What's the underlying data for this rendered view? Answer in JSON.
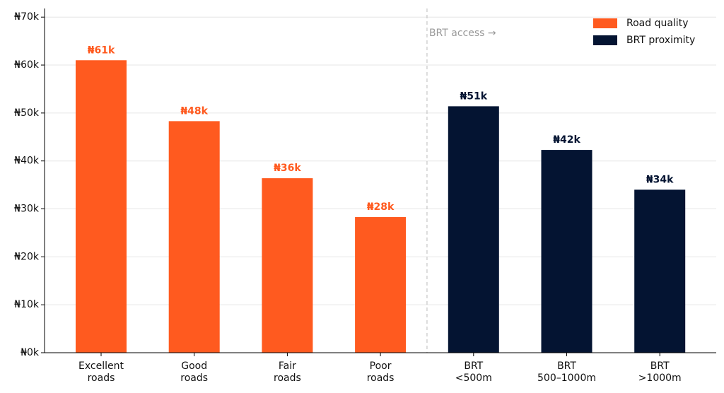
{
  "chart_data": {
    "type": "bar",
    "categories": [
      [
        "Excellent",
        "roads"
      ],
      [
        "Good",
        "roads"
      ],
      [
        "Fair",
        "roads"
      ],
      [
        "Poor",
        "roads"
      ],
      [
        "BRT",
        "<500m"
      ],
      [
        "BRT",
        "500–1000m"
      ],
      [
        "BRT",
        ">1000m"
      ]
    ],
    "series": [
      {
        "name": "Road quality",
        "color": "#ff5a1f",
        "values": [
          61000,
          48300,
          36400,
          28300,
          null,
          null,
          null
        ],
        "value_labels": [
          "₦61k",
          "₦48k",
          "₦36k",
          "₦28k",
          null,
          null,
          null
        ]
      },
      {
        "name": "BRT proximity",
        "color": "#041432",
        "values": [
          null,
          null,
          null,
          null,
          51400,
          42300,
          34000
        ],
        "value_labels": [
          null,
          null,
          null,
          null,
          "₦51k",
          "₦42k",
          "₦34k"
        ]
      }
    ],
    "ylim": [
      0,
      71800
    ],
    "yticks": [
      {
        "value": 0,
        "label": "₦0k"
      },
      {
        "value": 10000,
        "label": "₦10k"
      },
      {
        "value": 20000,
        "label": "₦20k"
      },
      {
        "value": 30000,
        "label": "₦30k"
      },
      {
        "value": 40000,
        "label": "₦40k"
      },
      {
        "value": 50000,
        "label": "₦50k"
      },
      {
        "value": 60000,
        "label": "₦60k"
      },
      {
        "value": 70000,
        "label": "₦70k"
      }
    ],
    "grid": true,
    "legend": "upper right",
    "annotations": [
      "BRT access →"
    ]
  }
}
